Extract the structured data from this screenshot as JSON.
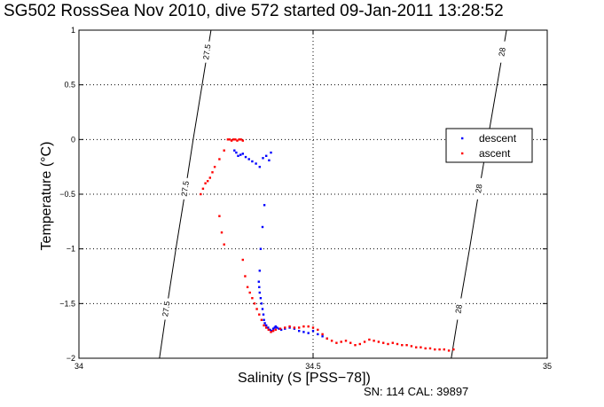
{
  "title": "SG502 RossSea Nov 2010, dive 572 started 09-Jan-2011 13:28:52",
  "footnote": "SN: 114  CAL: 39897",
  "chart_data": {
    "type": "scatter",
    "xlabel": "Salinity (S [PSS−78])",
    "ylabel": "Temperature (°C)",
    "xlim": [
      34,
      35
    ],
    "ylim": [
      -2,
      1
    ],
    "xticks": [
      34,
      34.5,
      35
    ],
    "xtick_labels": [
      "34",
      "34.5",
      "35"
    ],
    "yticks": [
      -2,
      -1.5,
      -1,
      -0.5,
      0,
      0.5,
      1
    ],
    "ytick_labels": [
      "−2",
      "−1.5",
      "−1",
      "−0.5",
      "0",
      "0.5",
      "1"
    ],
    "grid": true,
    "legend_placement": "right",
    "series": [
      {
        "name": "descent",
        "color": "#0000ff",
        "x": [
          34.332,
          34.336,
          34.34,
          34.345,
          34.35,
          34.356,
          34.363,
          34.37,
          34.378,
          34.386,
          34.393,
          34.4,
          34.406,
          34.41,
          34.396,
          34.392,
          34.388,
          34.386,
          34.384,
          34.385,
          34.386,
          34.388,
          34.39,
          34.392,
          34.394,
          34.395,
          34.397,
          34.4,
          34.404,
          34.408,
          34.412,
          34.415,
          34.418,
          34.42,
          34.423,
          34.427,
          34.432,
          34.44,
          34.45,
          34.46,
          34.47,
          34.48,
          34.49,
          34.5,
          34.51,
          34.52,
          34.53
        ],
        "y": [
          -0.1,
          -0.12,
          -0.15,
          -0.14,
          -0.13,
          -0.16,
          -0.18,
          -0.2,
          -0.22,
          -0.25,
          -0.17,
          -0.15,
          -0.19,
          -0.12,
          -0.6,
          -0.8,
          -1.0,
          -1.2,
          -1.3,
          -1.35,
          -1.4,
          -1.45,
          -1.5,
          -1.55,
          -1.6,
          -1.65,
          -1.68,
          -1.7,
          -1.72,
          -1.74,
          -1.75,
          -1.73,
          -1.72,
          -1.71,
          -1.72,
          -1.73,
          -1.74,
          -1.73,
          -1.72,
          -1.73,
          -1.75,
          -1.76,
          -1.77,
          -1.75,
          -1.78,
          -1.8,
          -1.82
        ]
      },
      {
        "name": "ascent",
        "color": "#ff0000",
        "x": [
          34.26,
          34.265,
          34.27,
          34.275,
          34.28,
          34.285,
          34.29,
          34.3,
          34.31,
          34.318,
          34.322,
          34.326,
          34.33,
          34.334,
          34.338,
          34.342,
          34.346,
          34.35,
          34.3,
          34.305,
          34.31,
          34.35,
          34.355,
          34.36,
          34.365,
          34.37,
          34.375,
          34.38,
          34.385,
          34.39,
          34.395,
          34.4,
          34.405,
          34.41,
          34.415,
          34.42,
          34.43,
          34.44,
          34.45,
          34.46,
          34.47,
          34.48,
          34.49,
          34.5,
          34.51,
          34.52,
          34.53,
          34.54,
          34.55,
          34.56,
          34.57,
          34.58,
          34.59,
          34.6,
          34.61,
          34.62,
          34.63,
          34.64,
          34.65,
          34.66,
          34.67,
          34.68,
          34.69,
          34.7,
          34.71,
          34.72,
          34.73,
          34.74,
          34.75,
          34.76,
          34.77,
          34.78,
          34.79,
          34.8
        ],
        "y": [
          -0.5,
          -0.45,
          -0.4,
          -0.38,
          -0.35,
          -0.3,
          -0.25,
          -0.18,
          -0.1,
          0.0,
          0.0,
          -0.01,
          0.0,
          0.0,
          -0.01,
          0.0,
          0.0,
          -0.01,
          -0.7,
          -0.85,
          -0.96,
          -1.1,
          -1.25,
          -1.35,
          -1.4,
          -1.45,
          -1.5,
          -1.55,
          -1.6,
          -1.65,
          -1.7,
          -1.72,
          -1.74,
          -1.76,
          -1.75,
          -1.74,
          -1.73,
          -1.72,
          -1.71,
          -1.72,
          -1.72,
          -1.71,
          -1.71,
          -1.72,
          -1.74,
          -1.78,
          -1.82,
          -1.84,
          -1.86,
          -1.85,
          -1.84,
          -1.86,
          -1.88,
          -1.87,
          -1.85,
          -1.83,
          -1.84,
          -1.85,
          -1.86,
          -1.87,
          -1.86,
          -1.87,
          -1.88,
          -1.88,
          -1.89,
          -1.9,
          -1.9,
          -1.91,
          -1.91,
          -1.92,
          -1.92,
          -1.92,
          -1.93,
          -1.92
        ]
      }
    ],
    "isopycnals": [
      {
        "label": "27.5",
        "x": [
          34.172,
          34.189,
          34.207,
          34.226,
          34.244,
          34.263,
          34.282,
          34.3
        ],
        "y": [
          -2,
          -1.5,
          -1,
          -0.5,
          0,
          0.5,
          1,
          1.5
        ]
      },
      {
        "label": "28",
        "x": [
          34.795,
          34.814,
          34.834,
          34.853,
          34.873,
          34.893,
          34.913,
          34.933
        ],
        "y": [
          -2,
          -1.5,
          -1,
          -0.5,
          0,
          0.5,
          1,
          1.5
        ]
      }
    ]
  }
}
